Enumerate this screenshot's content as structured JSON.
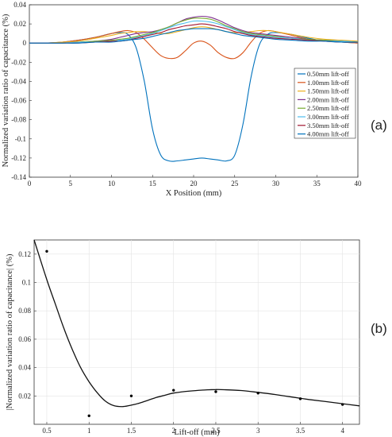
{
  "panel_labels": {
    "a": "(a)",
    "b": "(b)"
  },
  "chart_data": [
    {
      "type": "line",
      "xlabel": "X Position (mm)",
      "ylabel": "Normalized variation ratio of capacitance (%)",
      "xlim": [
        0,
        40
      ],
      "ylim": [
        -0.14,
        0.04
      ],
      "xticks": [
        "0",
        "5",
        "10",
        "15",
        "20",
        "25",
        "30",
        "35",
        "40"
      ],
      "yticks": [
        "0.04",
        "0.02",
        "0",
        "-0.02",
        "-0.04",
        "-0.06",
        "-0.08",
        "-0.1",
        "-0.12",
        "-0.14"
      ],
      "grid": false,
      "legend_position": "right",
      "x": [
        0,
        2,
        4,
        6,
        8,
        10,
        11,
        12,
        13,
        14,
        15,
        16,
        17,
        18,
        19,
        20,
        21,
        22,
        23,
        24,
        25,
        26,
        27,
        28,
        29,
        30,
        32,
        34,
        36,
        38,
        40
      ],
      "series": [
        {
          "name": "0.50mm lift-off",
          "color": "#0072BD",
          "values": [
            0,
            0,
            0.001,
            0.003,
            0.006,
            0.01,
            0.011,
            0.009,
            -0.005,
            -0.04,
            -0.09,
            -0.117,
            -0.123,
            -0.123,
            -0.122,
            -0.121,
            -0.12,
            -0.121,
            -0.122,
            -0.123,
            -0.117,
            -0.085,
            -0.035,
            -0.002,
            0.009,
            0.011,
            0.009,
            0.005,
            0.002,
            0.001,
            0
          ]
        },
        {
          "name": "1.00mm lift-off",
          "color": "#D95319",
          "values": [
            0,
            0,
            0.001,
            0.003,
            0.006,
            0.01,
            0.012,
            0.013,
            0.011,
            0.004,
            -0.005,
            -0.013,
            -0.016,
            -0.015,
            -0.008,
            0,
            0.002,
            -0.002,
            -0.01,
            -0.015,
            -0.016,
            -0.01,
            0.001,
            0.01,
            0.013,
            0.012,
            0.008,
            0.004,
            0.002,
            0.001,
            0
          ]
        },
        {
          "name": "1.50mm lift-off",
          "color": "#EDB120",
          "values": [
            0,
            0,
            0.001,
            0.002,
            0.005,
            0.008,
            0.01,
            0.011,
            0.012,
            0.012,
            0.011,
            0.01,
            0.01,
            0.012,
            0.014,
            0.016,
            0.017,
            0.016,
            0.014,
            0.012,
            0.011,
            0.011,
            0.012,
            0.013,
            0.013,
            0.012,
            0.009,
            0.006,
            0.004,
            0.003,
            0.002
          ]
        },
        {
          "name": "2.00mm lift-off",
          "color": "#7E2F8E",
          "values": [
            0,
            0,
            0,
            0.001,
            0.002,
            0.004,
            0.006,
            0.008,
            0.01,
            0.011,
            0.012,
            0.014,
            0.017,
            0.021,
            0.025,
            0.027,
            0.028,
            0.027,
            0.024,
            0.02,
            0.016,
            0.013,
            0.011,
            0.01,
            0.009,
            0.008,
            0.006,
            0.004,
            0.003,
            0.002,
            0.001
          ]
        },
        {
          "name": "2.50mm lift-off",
          "color": "#77AC30",
          "values": [
            0,
            0,
            0,
            0.001,
            0.002,
            0.003,
            0.004,
            0.005,
            0.007,
            0.009,
            0.011,
            0.014,
            0.017,
            0.021,
            0.024,
            0.026,
            0.026,
            0.025,
            0.022,
            0.018,
            0.015,
            0.012,
            0.01,
            0.009,
            0.008,
            0.007,
            0.005,
            0.004,
            0.003,
            0.002,
            0.001
          ]
        },
        {
          "name": "3.00mm lift-off",
          "color": "#4DBEEE",
          "values": [
            0,
            0,
            0,
            0.001,
            0.001,
            0.002,
            0.003,
            0.004,
            0.006,
            0.008,
            0.01,
            0.013,
            0.016,
            0.019,
            0.021,
            0.023,
            0.023,
            0.022,
            0.02,
            0.017,
            0.014,
            0.011,
            0.009,
            0.008,
            0.007,
            0.006,
            0.005,
            0.003,
            0.002,
            0.002,
            0.001
          ]
        },
        {
          "name": "3.50mm lift-off",
          "color": "#A2142F",
          "values": [
            0,
            0,
            0,
            0,
            0.001,
            0.002,
            0.002,
            0.003,
            0.005,
            0.007,
            0.009,
            0.011,
            0.014,
            0.016,
            0.018,
            0.019,
            0.02,
            0.019,
            0.017,
            0.015,
            0.012,
            0.01,
            0.008,
            0.007,
            0.006,
            0.005,
            0.004,
            0.003,
            0.002,
            0.001,
            0.001
          ]
        },
        {
          "name": "4.00mm lift-off",
          "color": "#0072BD",
          "values": [
            0,
            0,
            0,
            0,
            0.001,
            0.001,
            0.002,
            0.003,
            0.004,
            0.005,
            0.007,
            0.009,
            0.011,
            0.013,
            0.014,
            0.015,
            0.015,
            0.015,
            0.014,
            0.012,
            0.01,
            0.008,
            0.007,
            0.006,
            0.005,
            0.004,
            0.003,
            0.002,
            0.002,
            0.001,
            0.001
          ]
        }
      ]
    },
    {
      "type": "scatter",
      "xlabel": "Lift-off (mm)",
      "ylabel": "|Normalized variation ratio of capacitance| (%)",
      "xlim": [
        0.35,
        4.2
      ],
      "ylim": [
        0,
        0.13
      ],
      "xticks": [
        "0.5",
        "1",
        "1.5",
        "2",
        "2.5",
        "3",
        "3.5",
        "4"
      ],
      "yticks": [
        "0.12",
        "0.1",
        "0.08",
        "0.06",
        "0.04",
        "0.02"
      ],
      "grid": true,
      "points": {
        "x": [
          0.5,
          1.0,
          1.5,
          2.0,
          2.5,
          3.0,
          3.5,
          4.0
        ],
        "y": [
          0.122,
          0.006,
          0.02,
          0.024,
          0.023,
          0.022,
          0.018,
          0.014
        ]
      },
      "fit_curve": {
        "x": [
          0.35,
          0.5,
          0.6,
          0.7,
          0.8,
          0.9,
          1.0,
          1.1,
          1.2,
          1.3,
          1.4,
          1.5,
          1.6,
          1.7,
          1.8,
          1.9,
          2.0,
          2.2,
          2.4,
          2.5,
          2.6,
          2.8,
          3.0,
          3.2,
          3.4,
          3.6,
          3.8,
          4.0,
          4.2
        ],
        "y": [
          0.13,
          0.102,
          0.085,
          0.068,
          0.053,
          0.04,
          0.03,
          0.022,
          0.016,
          0.013,
          0.0125,
          0.0135,
          0.015,
          0.017,
          0.019,
          0.0205,
          0.022,
          0.0235,
          0.0243,
          0.0245,
          0.0244,
          0.0238,
          0.0225,
          0.021,
          0.0192,
          0.0175,
          0.016,
          0.0145,
          0.013
        ]
      }
    }
  ]
}
